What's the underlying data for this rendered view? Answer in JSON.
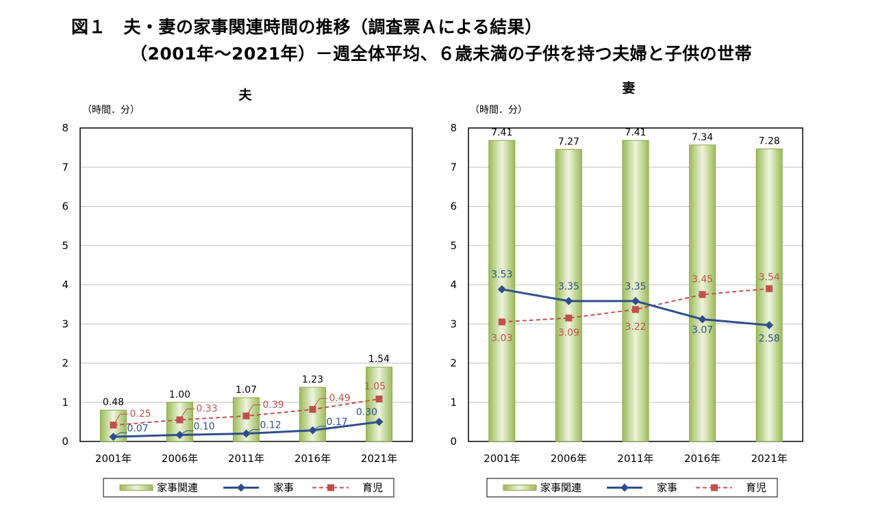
{
  "title_line1": "図１　夫・妻の家事関連時間の推移（調査票Ａによる結果）",
  "title_line2": "（2001年～2021年）－週全体平均、６歳未満の子供を持つ夫婦と子供の世帯",
  "colors": {
    "bar": "#9bbb59",
    "bar_light": "#eef4dd",
    "housework": "#2e4e8a",
    "childcare": "#c0504d"
  },
  "chart_data": [
    {
      "type": "bar",
      "title": "夫",
      "unit_label": "（時間．分）",
      "categories": [
        "2001年",
        "2006年",
        "2011年",
        "2016年",
        "2021年"
      ],
      "ylim": [
        0,
        8
      ],
      "yticks": [
        "0",
        "1",
        "2",
        "3",
        "4",
        "5",
        "6",
        "7",
        "8"
      ],
      "grid": true,
      "legend": "bottom",
      "series": [
        {
          "name": "家事関連",
          "kind": "bar",
          "values": [
            0.8,
            1.0,
            1.117,
            1.383,
            1.9
          ],
          "labels": [
            "0.48",
            "1.00",
            "1.07",
            "1.23",
            "1.54"
          ]
        },
        {
          "name": "家事",
          "kind": "line",
          "values": [
            0.117,
            0.167,
            0.2,
            0.283,
            0.5
          ],
          "labels": [
            "0.07",
            "0.10",
            "0.12",
            "0.17",
            "0.30"
          ]
        },
        {
          "name": "育児",
          "kind": "dashed-line",
          "values": [
            0.417,
            0.55,
            0.65,
            0.817,
            1.083
          ],
          "labels": [
            "0.25",
            "0.33",
            "0.39",
            "0.49",
            "1.05"
          ]
        }
      ]
    },
    {
      "type": "bar",
      "title": "妻",
      "unit_label": "（時間．分）",
      "categories": [
        "2001年",
        "2006年",
        "2011年",
        "2016年",
        "2021年"
      ],
      "ylim": [
        0,
        8
      ],
      "yticks": [
        "0",
        "1",
        "2",
        "3",
        "4",
        "5",
        "6",
        "7",
        "8"
      ],
      "grid": true,
      "legend": "bottom",
      "series": [
        {
          "name": "家事関連",
          "kind": "bar",
          "values": [
            7.683,
            7.45,
            7.683,
            7.567,
            7.467
          ],
          "labels": [
            "7.41",
            "7.27",
            "7.41",
            "7.34",
            "7.28"
          ]
        },
        {
          "name": "家事",
          "kind": "line",
          "values": [
            3.883,
            3.583,
            3.583,
            3.117,
            2.967
          ],
          "labels": [
            "3.53",
            "3.35",
            "3.35",
            "3.07",
            "2.58"
          ]
        },
        {
          "name": "育児",
          "kind": "dashed-line",
          "values": [
            3.05,
            3.15,
            3.367,
            3.75,
            3.9
          ],
          "labels": [
            "3.03",
            "3.09",
            "3.22",
            "3.45",
            "3.54"
          ]
        }
      ]
    }
  ]
}
